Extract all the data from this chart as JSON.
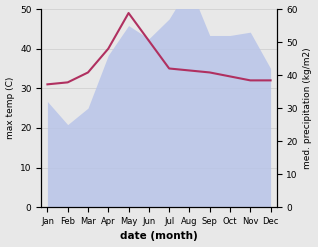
{
  "months": [
    "Jan",
    "Feb",
    "Mar",
    "Apr",
    "May",
    "Jun",
    "Jul",
    "Aug",
    "Sep",
    "Oct",
    "Nov",
    "Dec"
  ],
  "month_indices": [
    0,
    1,
    2,
    3,
    4,
    5,
    6,
    7,
    8,
    9,
    10,
    11
  ],
  "temp_max": [
    31.0,
    31.5,
    34.0,
    40.0,
    49.0,
    42.0,
    35.0,
    34.5,
    34.0,
    33.0,
    32.0,
    32.0
  ],
  "precip_mm": [
    32,
    25,
    30,
    46,
    55,
    51,
    57,
    67,
    52,
    52,
    53,
    42
  ],
  "temp_ylim": [
    0,
    50
  ],
  "precip_ylim": [
    0,
    60
  ],
  "temp_color": "#b03060",
  "precip_fill_color": "#b8c4e8",
  "xlabel": "date (month)",
  "ylabel_left": "max temp (C)",
  "ylabel_right": "med. precipitation (kg/m2)",
  "yticks_left": [
    0,
    10,
    20,
    30,
    40,
    50
  ],
  "yticks_right": [
    0,
    10,
    20,
    30,
    40,
    50,
    60
  ],
  "bg_color": "#e8e8e8",
  "plot_bg_color": "#e8e8e8"
}
